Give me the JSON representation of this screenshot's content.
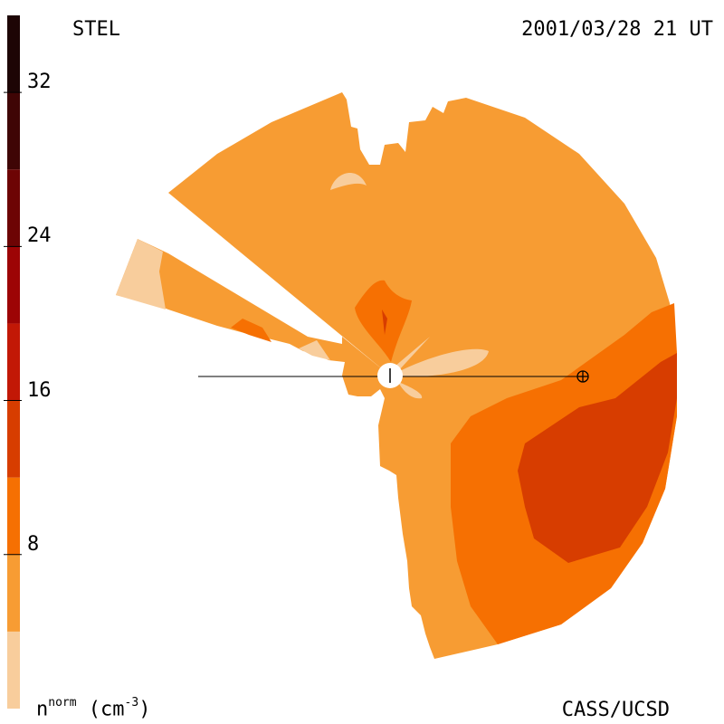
{
  "header": {
    "observatory": "STEL",
    "datetime": "2001/03/28 21 UT"
  },
  "footer": {
    "credit": "CASS/UCSD"
  },
  "colorbar": {
    "unit_symbol": "n",
    "unit_superscript": "norm",
    "unit_text": " (cm",
    "unit_exponent": "-3",
    "unit_close": ")",
    "min": 0,
    "max": 36,
    "step": 4,
    "ticks": [
      {
        "value": 8,
        "label": "8"
      },
      {
        "value": 16,
        "label": "16"
      },
      {
        "value": 24,
        "label": "24"
      },
      {
        "value": 32,
        "label": "32"
      }
    ],
    "levels": [
      "#f8cd9c",
      "#f79c33",
      "#f67002",
      "#d73d00",
      "#c21806",
      "#9d0405",
      "#6d0404",
      "#3f0505",
      "#1d0505"
    ]
  },
  "map": {
    "colors": {
      "background": "#ffffff",
      "low": "#f8cd9c",
      "base": "#f79c33",
      "medium": "#f67002",
      "high": "#d73d00",
      "peak": "#9d0405"
    },
    "sun_marker": "sun",
    "earth_marker": "earth"
  }
}
